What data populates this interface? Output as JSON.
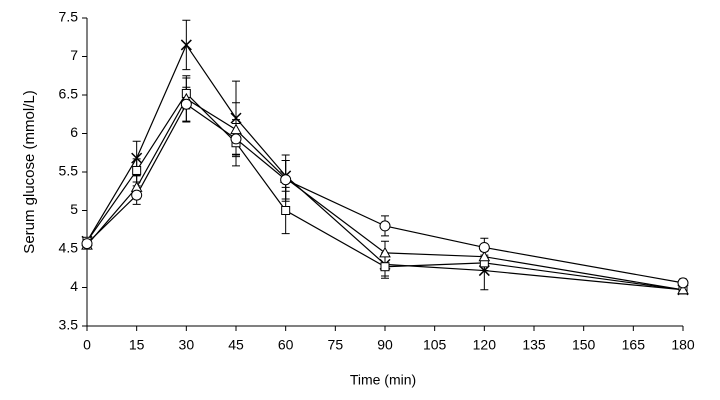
{
  "chart_data": {
    "type": "line",
    "xlabel": "Time (min)",
    "ylabel": "Serum glucose (mmol/L)",
    "x": [
      0,
      15,
      30,
      45,
      60,
      90,
      120,
      180
    ],
    "xlim": [
      0,
      180
    ],
    "xticks": [
      0,
      15,
      30,
      45,
      60,
      75,
      90,
      105,
      120,
      135,
      150,
      165,
      180
    ],
    "ylim": [
      3.5,
      7.5
    ],
    "yticks": [
      3.5,
      4,
      4.5,
      5,
      5.5,
      6,
      6.5,
      7,
      7.5
    ],
    "grid": false,
    "series": [
      {
        "color": "#000000",
        "marker": "x",
        "values": [
          4.6,
          5.68,
          7.15,
          6.2,
          5.45,
          4.3,
          4.22,
          3.97
        ],
        "errors": [
          0.05,
          0.22,
          0.32,
          0.48,
          0.2,
          0.15,
          0.25,
          0.05
        ]
      },
      {
        "color": "#000000",
        "marker": "square",
        "values": [
          4.6,
          5.52,
          6.52,
          5.88,
          5.0,
          4.27,
          4.32,
          3.97
        ],
        "errors": [
          0.05,
          0.15,
          0.2,
          0.3,
          0.3,
          0.15,
          0.1,
          0.05
        ]
      },
      {
        "color": "#000000",
        "marker": "triangle",
        "values": [
          4.55,
          5.3,
          6.45,
          6.05,
          5.42,
          4.45,
          4.4,
          3.97
        ],
        "errors": [
          0.05,
          0.15,
          0.3,
          0.35,
          0.3,
          0.15,
          0.1,
          0.05
        ]
      },
      {
        "color": "#000000",
        "marker": "circle",
        "values": [
          4.57,
          5.2,
          6.38,
          5.93,
          5.4,
          4.8,
          4.52,
          4.06
        ],
        "errors": [
          0.05,
          0.12,
          0.22,
          0.2,
          0.25,
          0.13,
          0.12,
          0.05
        ]
      }
    ]
  }
}
